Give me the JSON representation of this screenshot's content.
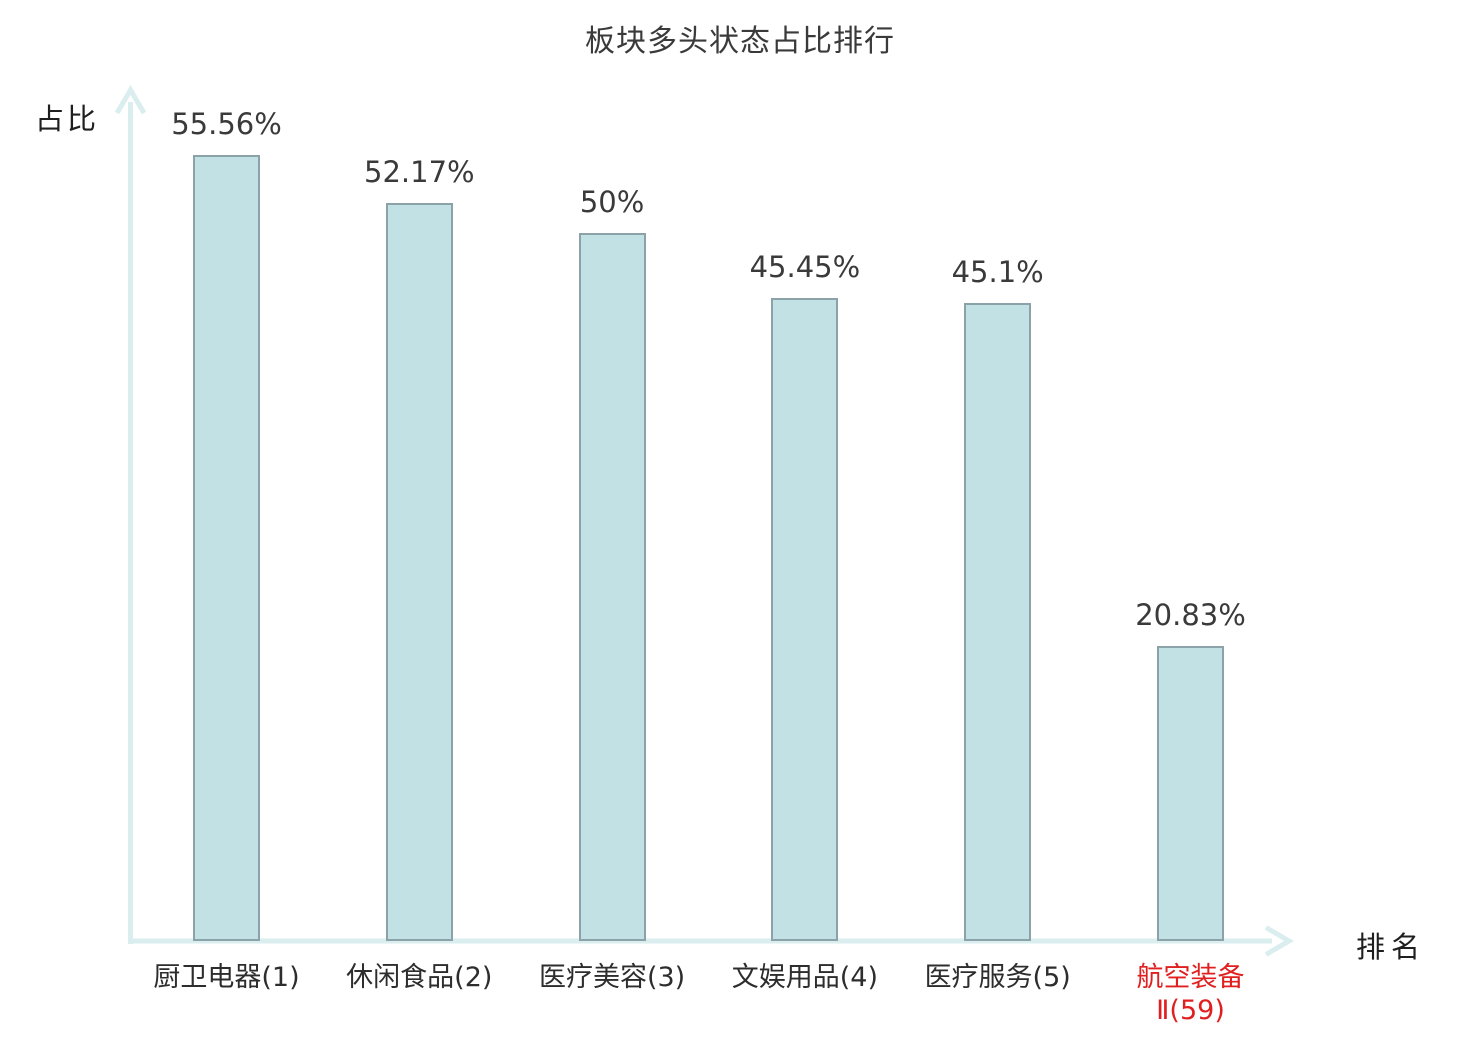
{
  "chart_data": {
    "type": "bar",
    "title": "板块多头状态占比排行",
    "ylabel": "占比",
    "xlabel": "排名",
    "categories": [
      "厨卫电器(1)",
      "休闲食品(2)",
      "医疗美容(3)",
      "文娱用品(4)",
      "医疗服务(5)",
      "航空装备Ⅱ(59)"
    ],
    "category_lines": [
      [
        "厨卫电器(1)"
      ],
      [
        "休闲食品(2)"
      ],
      [
        "医疗美容(3)"
      ],
      [
        "文娱用品(4)"
      ],
      [
        "医疗服务(5)"
      ],
      [
        "航空装备",
        "Ⅱ(59)"
      ]
    ],
    "values": [
      55.56,
      52.17,
      50,
      45.45,
      45.1,
      20.83
    ],
    "value_labels": [
      "55.56%",
      "52.17%",
      "50%",
      "45.45%",
      "45.1%",
      "20.83%"
    ],
    "highlight_index": 5,
    "ylim": [
      0,
      60
    ],
    "grid": false,
    "legend": null,
    "colors": {
      "bar_fill": "#c2e1e5",
      "bar_border": "#8ba3a8",
      "axis": "#daedef",
      "text": "#3a3a3a",
      "highlight_text": "#e02020"
    }
  }
}
